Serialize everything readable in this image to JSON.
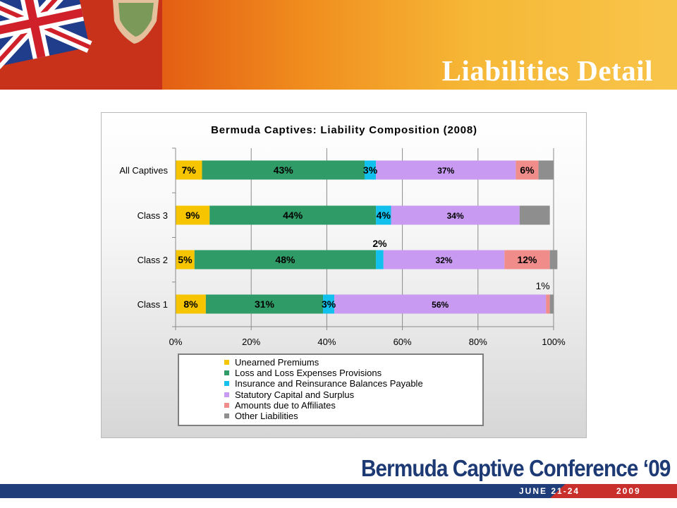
{
  "slide": {
    "title": "Liabilities Detail",
    "footer_logo": "Bermuda Captive Conference ‘09",
    "footer_dates": "JUNE 21-24",
    "footer_year": "2009"
  },
  "colors": {
    "unearned": "#f6c500",
    "loss": "#2f9b66",
    "insurance": "#12c0ee",
    "statutory": "#c89af1",
    "affiliates": "#f08d8a",
    "other": "#8e8e8e"
  },
  "chart_data": {
    "type": "bar",
    "orientation": "horizontal",
    "stacked": "percent",
    "title": "Bermuda Captives: Liability Composition (2008)",
    "categories": [
      "All Captives",
      "Class 3",
      "Class 2",
      "Class 1"
    ],
    "xlim": [
      0,
      100
    ],
    "x_ticks": [
      "0%",
      "20%",
      "40%",
      "60%",
      "80%",
      "100%"
    ],
    "grid": "vertical",
    "legend": "bottom",
    "series": [
      {
        "name": "Unearned Premiums",
        "color_key": "unearned",
        "values": [
          7,
          9,
          5,
          8
        ],
        "labels": [
          "7%",
          "9%",
          "5%",
          "8%"
        ]
      },
      {
        "name": "Loss and Loss Expenses Provisions",
        "color_key": "loss",
        "values": [
          43,
          44,
          48,
          31
        ],
        "labels": [
          "43%",
          "44%",
          "48%",
          "31%"
        ]
      },
      {
        "name": "Insurance and Reinsurance Balances Payable",
        "color_key": "insurance",
        "values": [
          3,
          4,
          2,
          3
        ],
        "labels": [
          "3%",
          "4%",
          "2%",
          "3%"
        ]
      },
      {
        "name": "Statutory Capital and Surplus",
        "color_key": "statutory",
        "values": [
          37,
          34,
          32,
          56
        ],
        "labels": [
          "37%",
          "34%",
          "32%",
          "56%"
        ]
      },
      {
        "name": "Amounts due to Affiliates",
        "color_key": "affiliates",
        "values": [
          6,
          0,
          12,
          1
        ],
        "labels": [
          "6%",
          "",
          "12%",
          "1%"
        ]
      },
      {
        "name": "Other Liabilities",
        "color_key": "other",
        "values": [
          4,
          8,
          2,
          1
        ],
        "labels": [
          "",
          "",
          "",
          ""
        ]
      }
    ]
  }
}
